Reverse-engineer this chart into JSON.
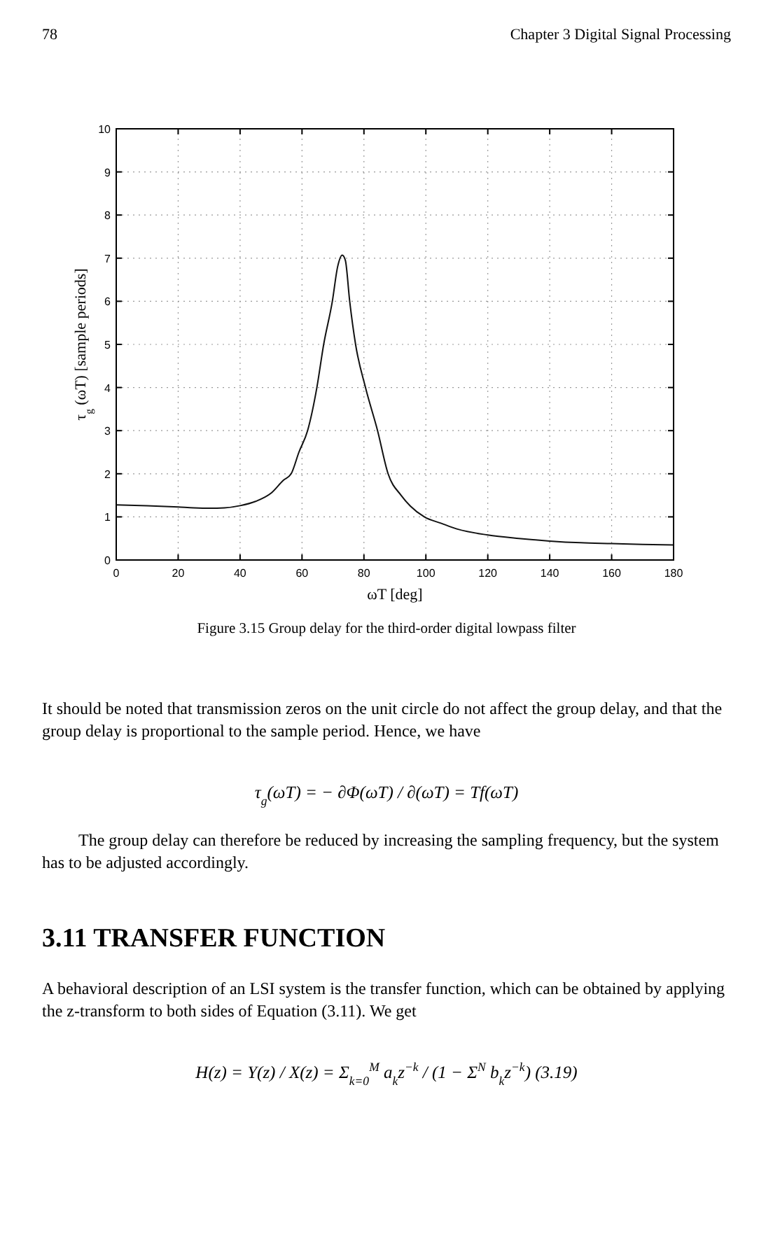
{
  "chart_data": {
    "type": "line",
    "title": "Figure 3.15   Group delay for the third-order digital lowpass filter",
    "xlabel": "ωT  [deg]",
    "ylabel": "τ$_{g}$ (ωT) [sample periods]",
    "x": [
      0,
      10,
      20,
      25,
      30,
      35,
      40,
      45,
      50,
      54,
      56.5,
      59,
      61.8,
      64.8,
      67,
      69.8,
      71.5,
      73,
      74,
      75.4,
      77.3,
      80.5,
      84.4,
      87.8,
      92,
      95,
      99.5,
      105,
      110,
      120,
      130,
      140,
      150,
      160,
      170,
      180
    ],
    "series": [
      {
        "color": "#111111",
        "values": [
          1.28,
          1.26,
          1.23,
          1.21,
          1.2,
          1.21,
          1.26,
          1.36,
          1.55,
          1.85,
          2.0,
          2.5,
          3.0,
          4.0,
          5.0,
          6.0,
          6.8,
          7.07,
          6.95,
          6.0,
          5.0,
          4.0,
          3.0,
          2.0,
          1.5,
          1.25,
          1.0,
          0.85,
          0.72,
          0.58,
          0.5,
          0.44,
          0.4,
          0.38,
          0.36,
          0.35
        ]
      }
    ],
    "xlim": [
      0,
      180
    ],
    "xticks": [
      0,
      20,
      40,
      60,
      80,
      100,
      120,
      140,
      160,
      180
    ],
    "ylim": [
      0,
      10
    ],
    "yticks": [
      0,
      1,
      2,
      3,
      4,
      5,
      6,
      7,
      8,
      9,
      10
    ],
    "grid": true,
    "line_style": "solid",
    "marker": "none",
    "annotations": [
      "78",
      "Chapter 3  Digital Signal Processing",
      "It should be noted that transmission zeros on the unit circle do not affect the group delay, and that the group delay is proportional to the sample period. Hence, we have",
      "τ$_{g}$(ωT) = − ∂Φ(ωT) / ∂(ωT) = Tf(ωT)",
      "The group delay can therefore be reduced by increasing the sampling frequency, but the system has to be adjusted accordingly.",
      "3.11   TRANSFER FUNCTION",
      "A behavioral description of an LSI system is the transfer function, which can be obtained by applying the z-transform to both sides of Equation (3.11). We get",
      "H(z) = Y(z) / X(z) = Σ$_{k=0}$$^{M}$ a$_{k}$z$^{−k}$ / (1 − Σ$^{N}$ b$_{k}$z$^{−k}$)        (3.19)"
    ]
  }
}
